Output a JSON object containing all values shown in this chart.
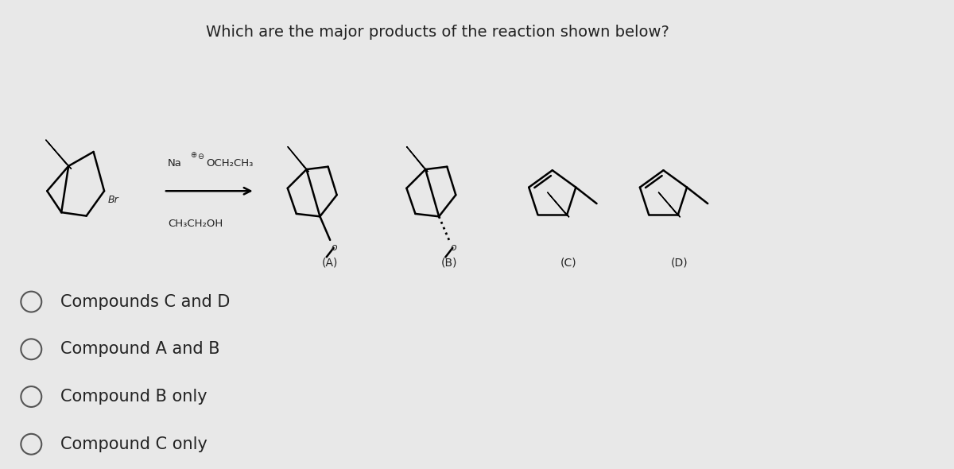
{
  "title": "Which are the major products of the reaction shown below?",
  "bg_color": "#e8e8e8",
  "text_color": "#222222",
  "answer_options": [
    "Compounds C and D",
    "Compound A and B",
    "Compound B only",
    "Compound C only"
  ],
  "answer_fontsize": 15,
  "compound_labels": [
    "(A)",
    "(B)",
    "(C)",
    "(D)"
  ],
  "reagent_na": "Na",
  "reagent_ether": "OCH₂CH₃",
  "reagent_solvent": "CH₃CH₂OH"
}
